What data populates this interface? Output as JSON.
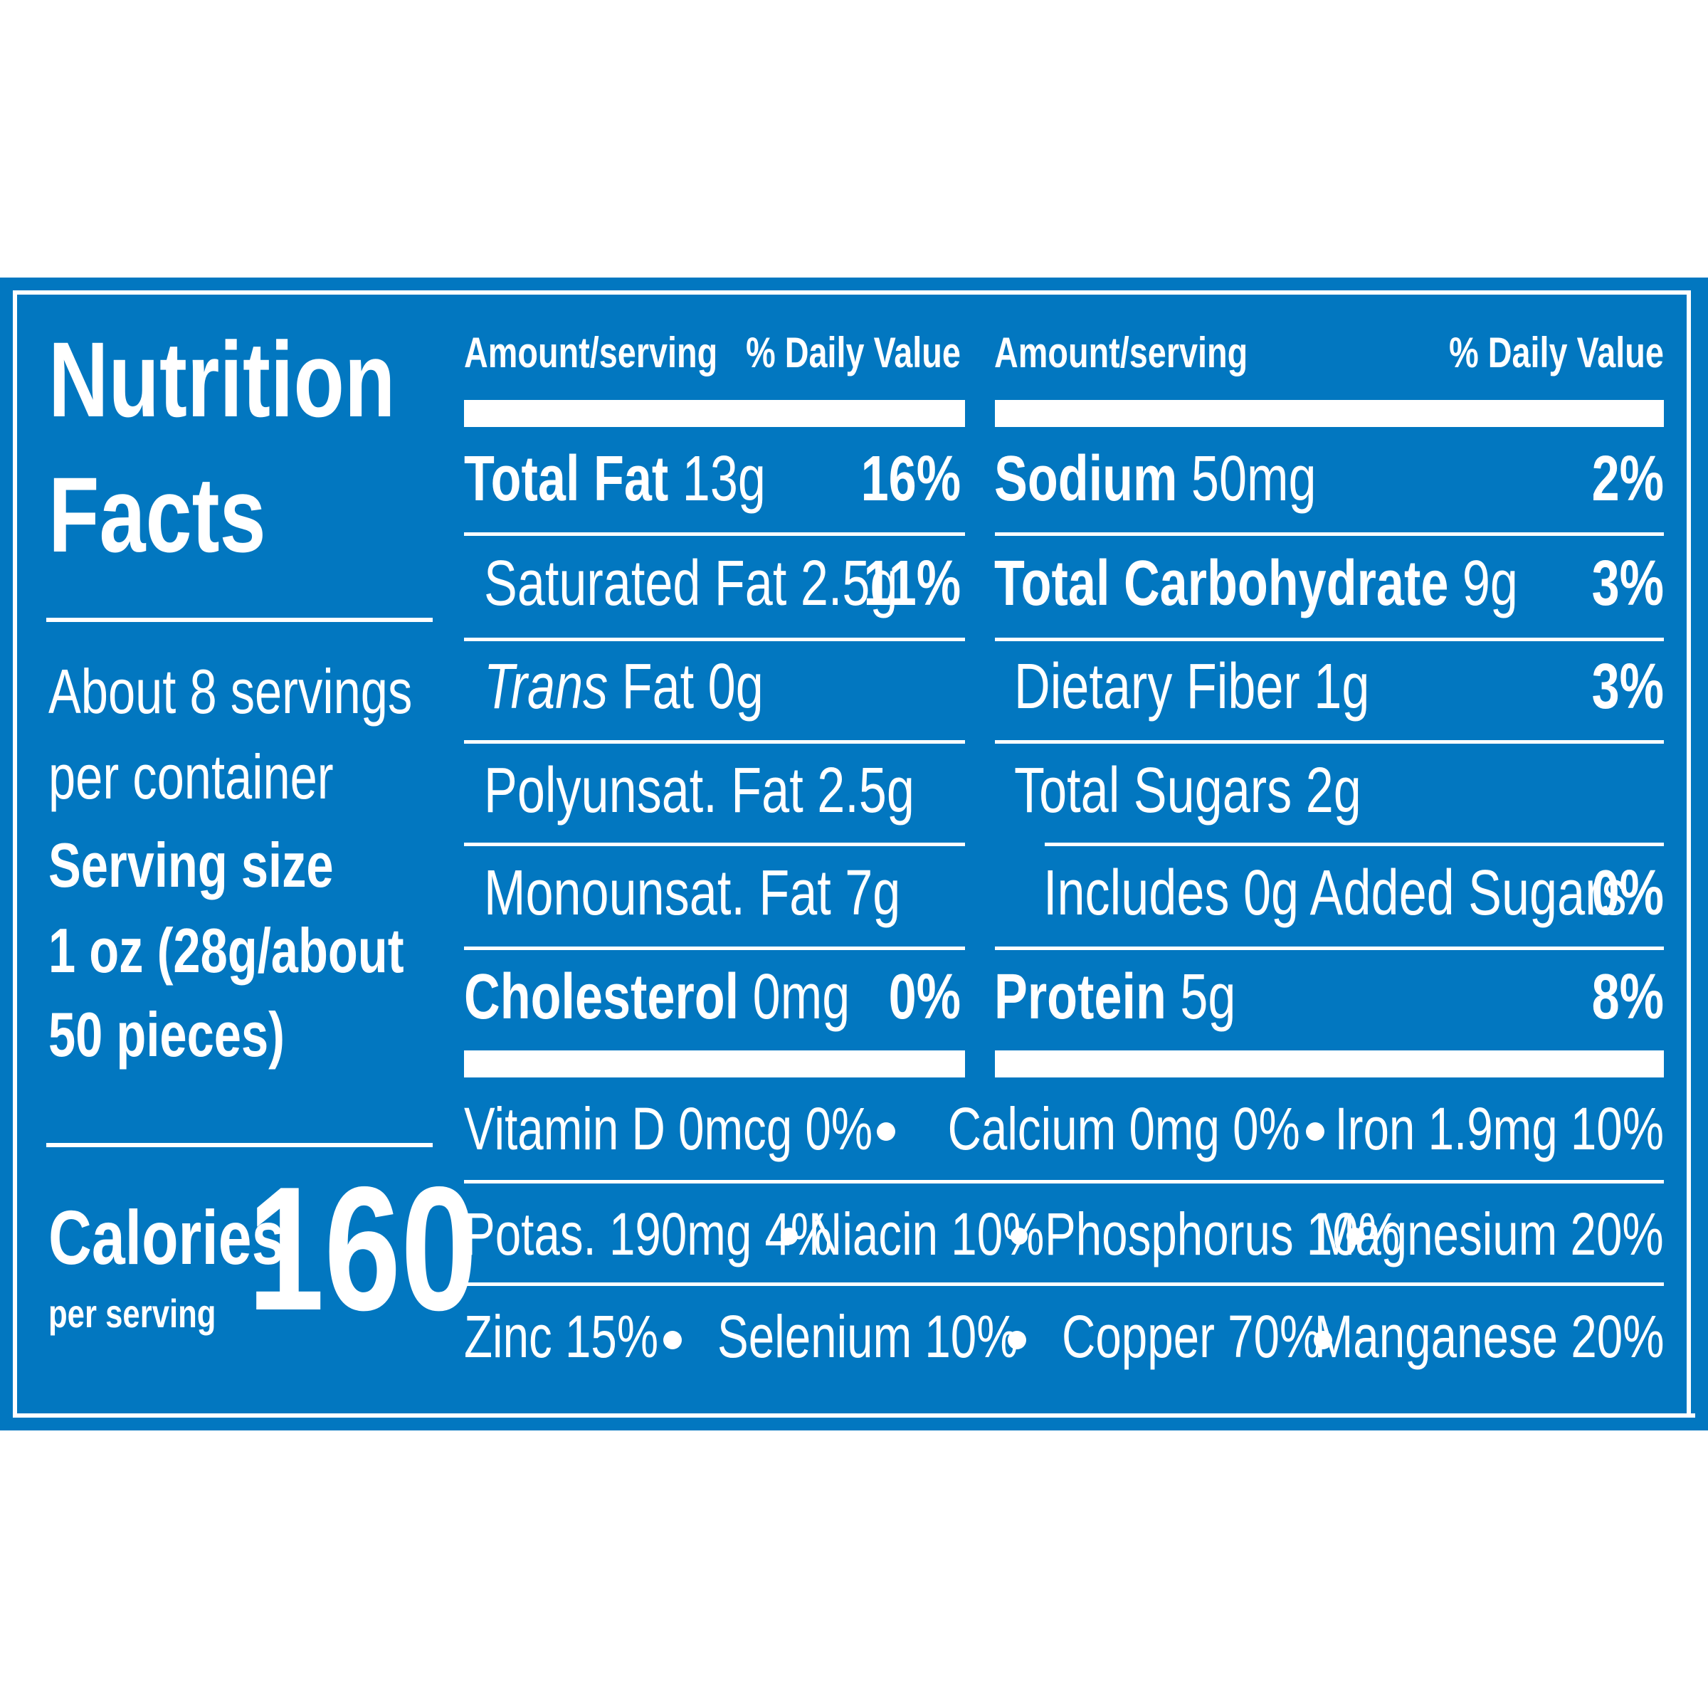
{
  "colors": {
    "panel": "#0277c0",
    "text": "#ffffff",
    "accent": "#f3cd4a"
  },
  "title_line1": "Nutrition",
  "title_line2": "Facts",
  "servings": {
    "line1": "About 8 servings",
    "line2": "per container"
  },
  "serving_size": {
    "label": "Serving size",
    "line1": "1 oz (28g/about",
    "line2": "50 pieces)"
  },
  "calories": {
    "label": "Calories",
    "sub": "per serving",
    "value": "160"
  },
  "headers": {
    "amount_left": "Amount/serving",
    "dv_left": "% Daily Value",
    "amount_right": "Amount/serving",
    "dv_right": "% Daily Value"
  },
  "left_rows": [
    {
      "name": "Total Fat",
      "amount": "13g",
      "dv": "16%"
    },
    {
      "name": "Saturated Fat 2.5g",
      "dv": "11%"
    },
    {
      "italic": "Trans",
      "rest": "Fat 0g"
    },
    {
      "name": "Polyunsat. Fat 2.5g"
    },
    {
      "name": "Monounsat. Fat 7g"
    },
    {
      "name": "Cholesterol",
      "amount": "0mg",
      "dv": "0%"
    }
  ],
  "right_rows": [
    {
      "name": "Sodium",
      "amount": "50mg",
      "dv": "2%"
    },
    {
      "name": "Total Carbohydrate",
      "amount": "9g",
      "dv": "3%"
    },
    {
      "name": "Dietary Fiber 1g",
      "dv": "3%"
    },
    {
      "name": "Total Sugars 2g"
    },
    {
      "name": "Includes 0g Added Sugars",
      "dv": "0%"
    },
    {
      "name": "Protein",
      "amount": "5g",
      "dv": "8%"
    }
  ],
  "vitamins": {
    "row1": [
      "Vitamin D 0mcg 0%",
      "Calcium 0mg 0%",
      "Iron 1.9mg 10%"
    ],
    "row2": [
      "Potas. 190mg 4%",
      "Niacin 10%",
      "Phosphorus 10%",
      "Magnesium 20%"
    ],
    "row3": [
      "Zinc 15%",
      "Selenium 10%",
      "Copper 70%",
      "Manganese 20%"
    ]
  }
}
